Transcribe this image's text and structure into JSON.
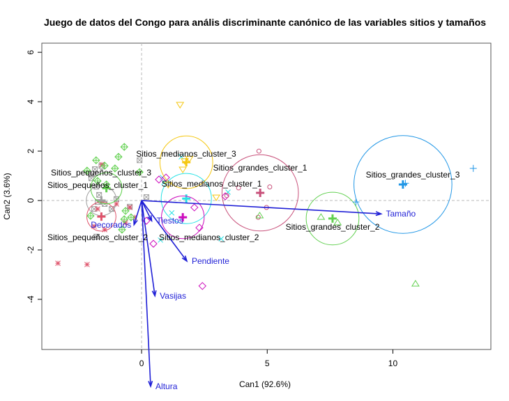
{
  "chart_data": {
    "type": "scatter",
    "title": "Juego de datos del Congo para anális discriminante canónico de las variables sitios y tamaños",
    "xlabel": "Can1 (92.6%)",
    "ylabel": "Can2 (3.6%)",
    "xlim": [
      -3.97,
      13.9
    ],
    "ylim": [
      -6.03,
      6.37
    ],
    "xticks": [
      0,
      5,
      10
    ],
    "yticks": [
      -4,
      -2,
      0,
      2,
      4,
      6
    ],
    "reference_lines": {
      "x": 0,
      "y": 0
    },
    "groups": [
      {
        "name": "Sitios_pequeños_cluster_1",
        "color": "#9e9e9e",
        "symbol": "boxx",
        "center": [
          -1.6,
          0.0
        ],
        "radius": 0.6,
        "points": [
          [
            -1.86,
            1.27
          ],
          [
            -1.94,
            1.07
          ],
          [
            -1.0,
            0.06
          ],
          [
            -0.47,
            -0.25
          ],
          [
            -1.8,
            -1.46
          ],
          [
            -1.8,
            0.56
          ],
          [
            -1.75,
            -0.06
          ],
          [
            -1.47,
            -0.14
          ],
          [
            -0.08,
            1.63
          ],
          [
            -1.69,
            0.23
          ],
          [
            0.19,
            0.14
          ],
          [
            -1.89,
            -0.34
          ],
          [
            -1.19,
            -0.34
          ],
          [
            -1.6,
            1.4
          ],
          [
            -2.0,
            0.9
          ]
        ]
      },
      {
        "name": "Sitios_pequeños_cluster_2",
        "color": "#DF536B",
        "symbol": "asterisk",
        "center": [
          -1.6,
          -0.65
        ],
        "radius": 0.58,
        "points": [
          [
            -1.58,
            1.46
          ],
          [
            -1.0,
            -0.14
          ],
          [
            -0.47,
            -0.28
          ],
          [
            -0.28,
            -0.68
          ],
          [
            -3.33,
            -2.54
          ],
          [
            -2.17,
            -2.59
          ],
          [
            -1.75,
            -0.34
          ],
          [
            -1.47,
            -1.18
          ],
          [
            -0.64,
            -0.9
          ],
          [
            -1.89,
            -1.04
          ]
        ]
      },
      {
        "name": "Sitios_pequeños_cluster_3",
        "color": "#61D04F",
        "symbol": "diamondplus",
        "center": [
          -1.4,
          0.5
        ],
        "radius": 0.62,
        "points": [
          [
            -0.69,
            2.17
          ],
          [
            -0.92,
            1.77
          ],
          [
            -1.06,
            1.3
          ],
          [
            -2.17,
            1.21
          ],
          [
            -0.08,
            1.15
          ],
          [
            -1.47,
            1.41
          ],
          [
            -1.81,
            1.63
          ],
          [
            -1.4,
            0.65
          ],
          [
            -0.64,
            -0.42
          ],
          [
            -0.42,
            -0.68
          ],
          [
            -0.69,
            -0.76
          ],
          [
            -0.78,
            -1.18
          ],
          [
            -2.03,
            -0.62
          ],
          [
            -1.75,
            0.79
          ]
        ]
      },
      {
        "name": "Sitios_medianos_cluster_1",
        "color": "#28E2E5",
        "symbol": "x",
        "center": [
          1.78,
          0.08
        ],
        "radius": 1.0,
        "points": [
          [
            0.89,
            0.73
          ],
          [
            0.75,
            -1.6
          ],
          [
            3.17,
            -1.55
          ],
          [
            1.58,
            1.77
          ],
          [
            3.44,
            0.34
          ],
          [
            0.83,
            0.93
          ],
          [
            1.2,
            -0.5
          ]
        ]
      },
      {
        "name": "Sitios_medianos_cluster_2",
        "color": "#CD0BBC",
        "symbol": "diamond",
        "center": [
          1.64,
          -0.68
        ],
        "radius": 0.85,
        "points": [
          [
            0.69,
            0.85
          ],
          [
            0.97,
            0.93
          ],
          [
            2.1,
            -0.28
          ],
          [
            0.47,
            -1.75
          ],
          [
            2.42,
            -3.46
          ],
          [
            3.33,
            0.17
          ],
          [
            0.19,
            -0.82
          ],
          [
            2.3,
            -1.1
          ]
        ]
      },
      {
        "name": "Sitios_medianos_cluster_3",
        "color": "#F5C710",
        "symbol": "tridown",
        "center": [
          1.78,
          1.55
        ],
        "radius": 1.05,
        "points": [
          [
            1.53,
            3.89
          ],
          [
            1.72,
            1.61
          ],
          [
            1.64,
            1.27
          ],
          [
            1.06,
            0.65
          ],
          [
            2.97,
            0.14
          ],
          [
            1.9,
            1.7
          ]
        ]
      },
      {
        "name": "Sitios_grandes_cluster_1",
        "color": "#C8507A",
        "symbol": "circle",
        "center": [
          4.72,
          0.31
        ],
        "radius": 1.52,
        "points": [
          [
            4.67,
            2.0
          ],
          [
            4.97,
            -0.28
          ],
          [
            4.64,
            -0.68
          ],
          [
            3.39,
            0.2
          ],
          [
            3.86,
            0.51
          ],
          [
            5.1,
            0.55
          ]
        ]
      },
      {
        "name": "Sitios_grandes_cluster_2",
        "color": "#61D04F",
        "symbol": "triup",
        "center": [
          7.6,
          -0.73
        ],
        "radius": 1.05,
        "points": [
          [
            7.14,
            -0.68
          ],
          [
            10.9,
            -3.38
          ],
          [
            7.8,
            -0.9
          ],
          [
            4.7,
            -0.62
          ]
        ]
      },
      {
        "name": "Sitios_grandes_cluster_3",
        "color": "#2297E6",
        "symbol": "plus",
        "center": [
          10.4,
          0.65
        ],
        "radius": 1.95,
        "points": [
          [
            13.2,
            1.3
          ],
          [
            8.53,
            -0.06
          ],
          [
            10.5,
            0.7
          ]
        ]
      }
    ],
    "vectors": [
      {
        "name": "Tamaño",
        "x": 9.53,
        "y": -0.54
      },
      {
        "name": "Pendiente",
        "x": 1.8,
        "y": -2.45
      },
      {
        "name": "Vasijas",
        "x": 0.53,
        "y": -3.86
      },
      {
        "name": "Altura",
        "x": 0.36,
        "y": -7.52
      },
      {
        "name": "Tiestos",
        "x": 0.4,
        "y": -0.82
      },
      {
        "name": "Decorados",
        "x": -0.3,
        "y": -0.98
      }
    ],
    "vector_color": "#1f1fd6"
  }
}
